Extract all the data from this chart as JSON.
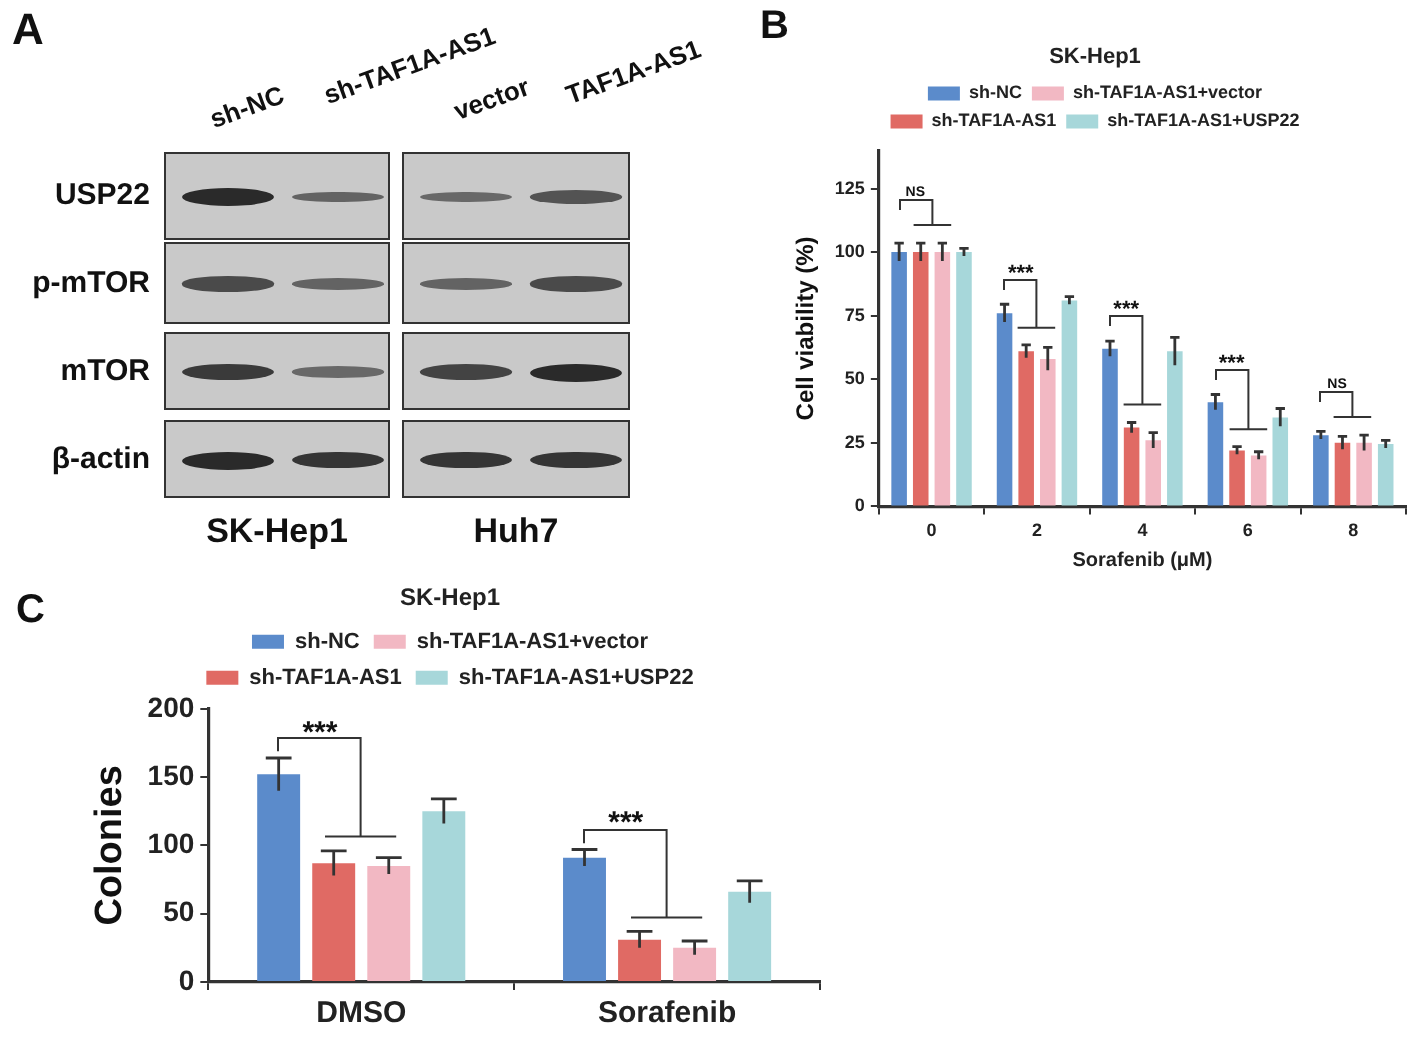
{
  "chart_data": [
    {
      "type": "other",
      "annotations": [
        "A",
        "sh-NC",
        "sh-TAF1A-AS1",
        "vector",
        "TAF1A-AS1",
        "USP22",
        "p-mTOR",
        "mTOR",
        "β-actin",
        "SK-Hep1",
        "Huh7"
      ]
    },
    {
      "type": "bar",
      "title": "SK-Hep1",
      "xlabel": "Sorafenib (μM)",
      "ylabel": "Cell viability (%)",
      "categories": [
        "0",
        "2",
        "4",
        "6",
        "8"
      ],
      "series": [
        {
          "name": "sh-NC",
          "color": "#5b8bcb",
          "values": [
            100,
            76,
            62,
            41,
            28
          ],
          "errors": [
            3.5,
            3.5,
            3,
            3,
            1.5
          ]
        },
        {
          "name": "sh-TAF1A-AS1",
          "color": "#e06a64",
          "values": [
            100,
            61,
            31,
            22,
            25
          ],
          "errors": [
            3.5,
            2.5,
            2,
            1.5,
            2.5
          ]
        },
        {
          "name": "sh-TAF1A-AS1+vector",
          "color": "#f2b8c3",
          "values": [
            100,
            58,
            26,
            20,
            25
          ],
          "errors": [
            3.5,
            4.5,
            3,
            1.5,
            3
          ]
        },
        {
          "name": "sh-TAF1A-AS1+USP22",
          "color": "#a7d7da",
          "values": [
            100,
            81,
            61,
            35,
            24.5
          ],
          "errors": [
            1.5,
            1.5,
            5.5,
            3.5,
            1.5
          ]
        }
      ],
      "ylim": [
        0,
        140
      ],
      "yticks": [
        0,
        25,
        50,
        75,
        100,
        125
      ],
      "grid": false,
      "legend": "top",
      "annotations": [
        "B",
        "NS",
        "***",
        "***",
        "***",
        "NS"
      ]
    },
    {
      "type": "bar",
      "title": "SK-Hep1",
      "ylabel": "Colonies",
      "categories": [
        "DMSO",
        "Sorafenib"
      ],
      "series": [
        {
          "name": "sh-NC",
          "color": "#5b8bcb",
          "values": [
            152,
            91
          ],
          "errors": [
            12,
            6
          ]
        },
        {
          "name": "sh-TAF1A-AS1",
          "color": "#e06a64",
          "values": [
            87,
            31
          ],
          "errors": [
            9,
            6
          ]
        },
        {
          "name": "sh-TAF1A-AS1+vector",
          "color": "#f2b8c3",
          "values": [
            85,
            25
          ],
          "errors": [
            6,
            5
          ]
        },
        {
          "name": "sh-TAF1A-AS1+USP22",
          "color": "#a7d7da",
          "values": [
            125,
            66
          ],
          "errors": [
            9,
            8
          ]
        }
      ],
      "ylim": [
        0,
        200
      ],
      "yticks": [
        0,
        50,
        100,
        150,
        200
      ],
      "grid": false,
      "legend": "top",
      "annotations": [
        "C",
        "***",
        "***"
      ]
    }
  ]
}
